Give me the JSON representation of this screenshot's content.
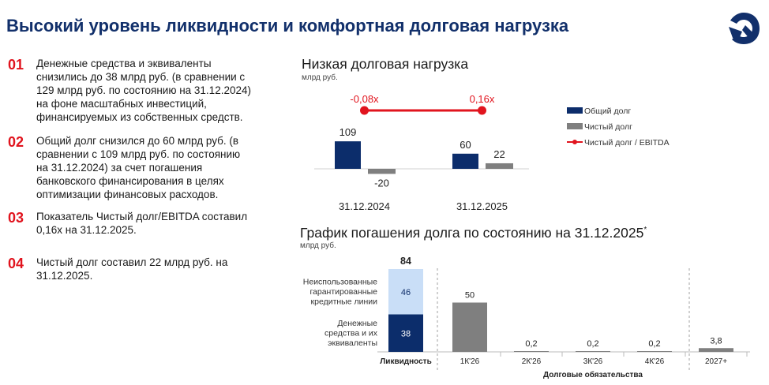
{
  "title": "Высокий уровень ликвидности и комфортная долговая нагрузка",
  "colors": {
    "navy": "#0c2d6b",
    "gray": "#7f7f7f",
    "lightblue": "#c9def7",
    "red": "#e1141e",
    "title": "#12306b"
  },
  "points": [
    {
      "num": "01",
      "lines": [
        "Денежные средства и эквиваленты",
        "снизились до 38 млрд руб. (в сравнении с",
        "129 млрд руб. по состоянию на 31.12.2024)",
        "на фоне масштабных инвестиций,",
        "финансируемых из собственных средств."
      ]
    },
    {
      "num": "02",
      "lines": [
        "Общий долг снизился до 60 млрд руб. (в",
        "сравнении с 109 млрд руб. по состоянию",
        "на 31.12.2024) за счет погашения",
        "банковского финансирования в целях",
        "оптимизации финансовых расходов."
      ]
    },
    {
      "num": "03",
      "lines": [
        "Показатель Чистый долг/EBITDA составил",
        "0,16х на 31.12.2025."
      ]
    },
    {
      "num": "04",
      "lines": [
        "Чистый долг составил 22 млрд руб. на",
        "31.12.2025."
      ]
    }
  ],
  "chart_data": [
    {
      "type": "bar",
      "title": "Низкая долговая нагрузка",
      "unit": "млрд руб.",
      "categories": [
        "31.12.2024",
        "31.12.2025"
      ],
      "series": [
        {
          "name": "Общий долг",
          "values": [
            109,
            60
          ],
          "labels": [
            "109",
            "60"
          ],
          "color": "#0c2d6b"
        },
        {
          "name": "Чистый долг",
          "values": [
            -20,
            22
          ],
          "labels": [
            "-20",
            "22"
          ],
          "color": "#7f7f7f"
        }
      ],
      "line_series": {
        "name": "Чистый долг / EBITDA",
        "values": [
          -0.08,
          0.16
        ],
        "labels": [
          "-0,08х",
          "0,16х"
        ],
        "color": "#e1141e"
      },
      "legend_position": "right"
    },
    {
      "type": "bar",
      "title": "График погашения долга по состоянию на 31.12.2025",
      "title_mark": "*",
      "unit": "млрд руб.",
      "liquidity": {
        "category": "Ликвидность",
        "total": 84,
        "total_label": "84",
        "segments": [
          {
            "name": "Денежные средства и их эквиваленты",
            "lines": [
              "Денежные",
              "средства и их",
              "эквиваленты"
            ],
            "value": 38,
            "label": "38",
            "color": "#0c2d6b"
          },
          {
            "name": "Неиспользованные гарантированные кредитные линии",
            "lines": [
              "Неиспользованные",
              "гарантированные",
              "кредитные линии"
            ],
            "value": 46,
            "label": "46",
            "color": "#c9def7"
          }
        ]
      },
      "obligations_label": "Долговые обязательства",
      "categories": [
        "1К'26",
        "2К'26",
        "3К'26",
        "4К'26",
        "2027+"
      ],
      "values": [
        50,
        0.2,
        0.2,
        0.2,
        3.8
      ],
      "labels": [
        "50",
        "0,2",
        "0,2",
        "0,2",
        "3,8"
      ],
      "bar_color": "#7f7f7f"
    }
  ]
}
